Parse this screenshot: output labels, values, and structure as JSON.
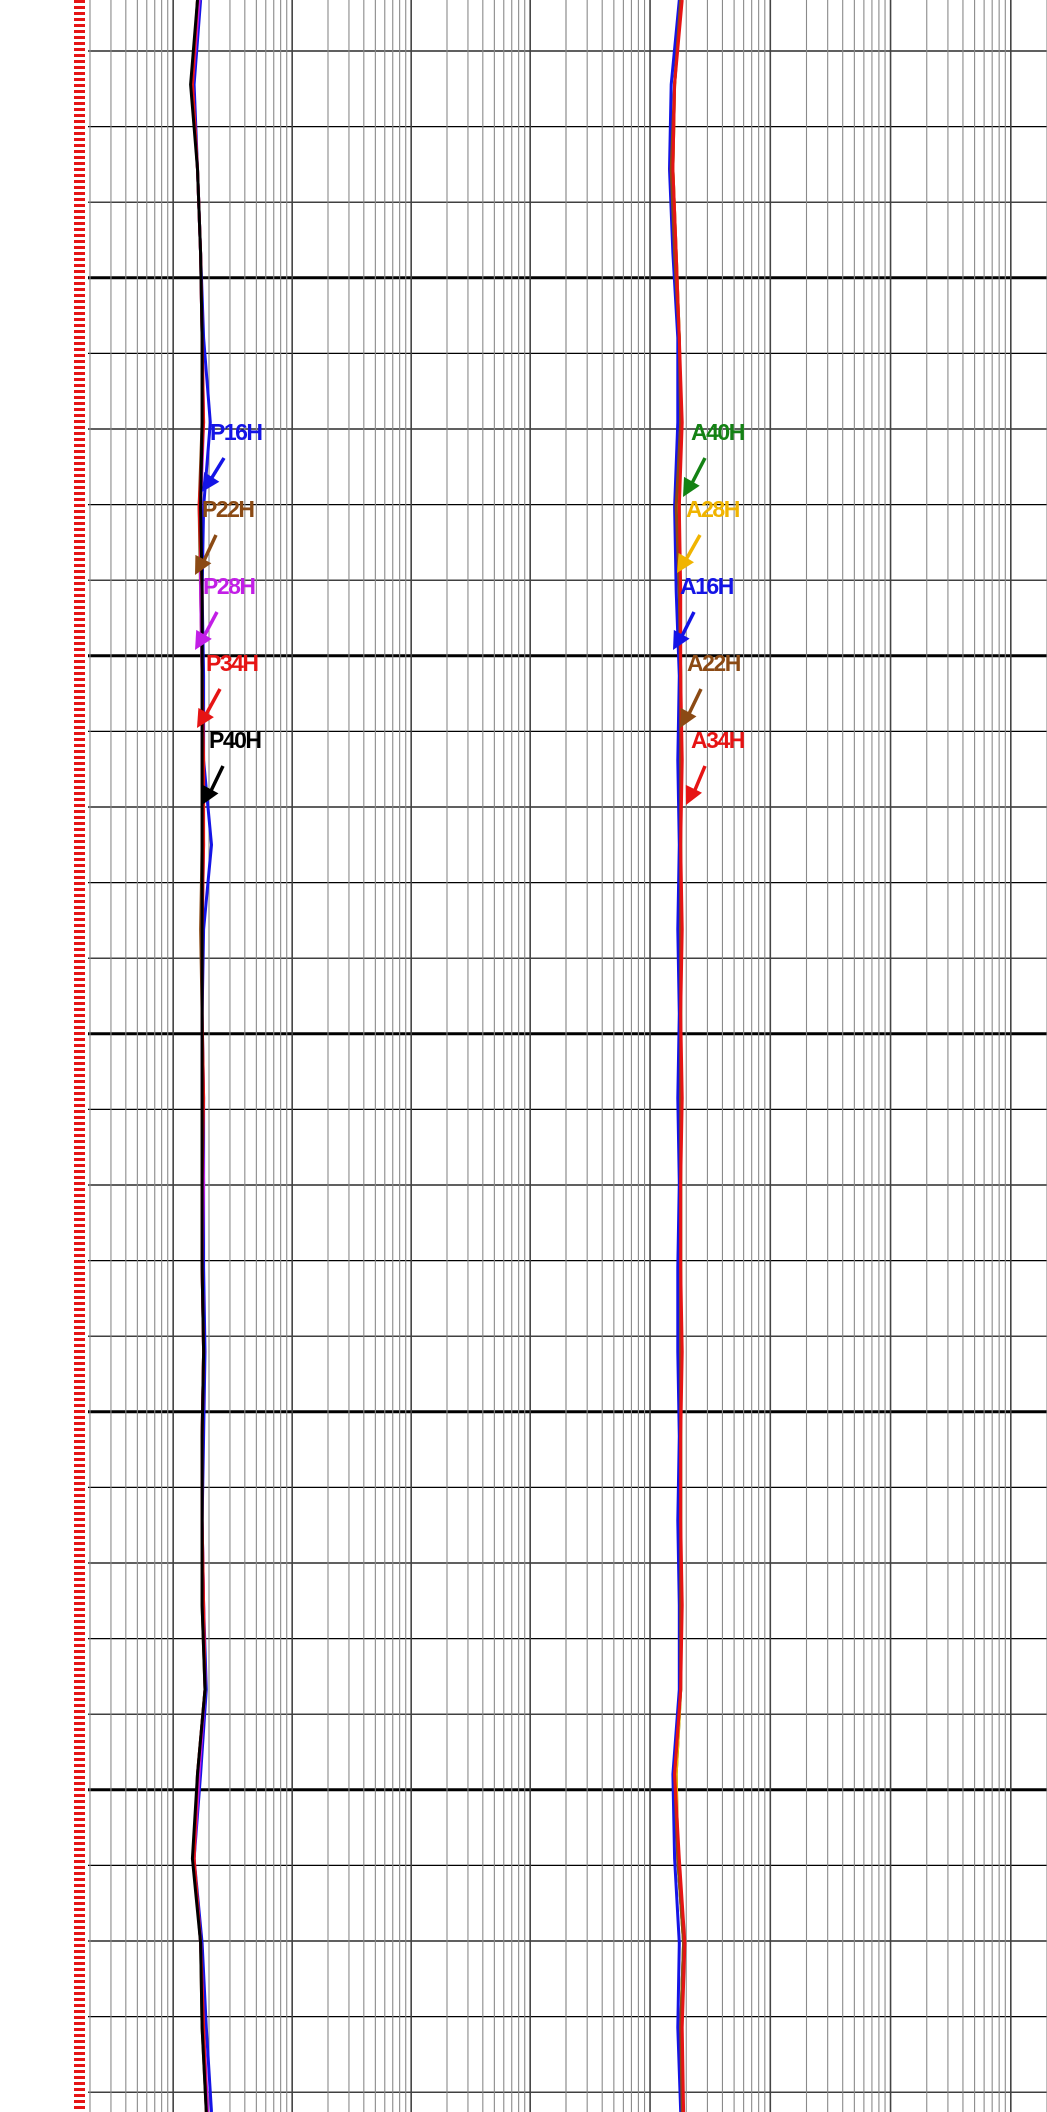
{
  "chart_data": {
    "type": "well-log",
    "ylim": [
      0,
      100
    ],
    "log_scale": true,
    "grid": true,
    "depth": [
      0,
      4,
      8,
      12,
      16,
      20,
      24,
      28,
      32,
      36,
      40,
      44,
      48,
      52,
      56,
      60,
      64,
      68,
      72,
      76,
      80,
      84,
      88,
      92,
      96,
      100
    ],
    "tracks": [
      {
        "xlim": [
          0.2,
          2000
        ],
        "series": [
          {
            "name": "P16H",
            "color": "#1414e6",
            "values": [
              1.7,
              1.5,
              1.6,
              1.7,
              1.8,
              2.05,
              1.8,
              1.75,
              1.8,
              1.8,
              2.1,
              1.8,
              1.75,
              1.8,
              1.8,
              1.8,
              1.85,
              1.8,
              1.75,
              1.8,
              1.9,
              1.7,
              1.5,
              1.75,
              1.9,
              2.1
            ]
          },
          {
            "name": "P22H",
            "color": "#8b4a14",
            "values": [
              1.6,
              1.45,
              1.6,
              1.7,
              1.75,
              1.75,
              1.65,
              1.7,
              1.75,
              1.75,
              1.75,
              1.7,
              1.75,
              1.75,
              1.75,
              1.75,
              1.8,
              1.75,
              1.75,
              1.75,
              1.85,
              1.6,
              1.5,
              1.7,
              1.75,
              1.9
            ]
          },
          {
            "name": "P28H",
            "color": "#c21ee6",
            "values": [
              1.65,
              1.45,
              1.6,
              1.7,
              1.75,
              1.8,
              1.7,
              1.7,
              1.75,
              1.75,
              1.8,
              1.75,
              1.75,
              1.75,
              1.8,
              1.75,
              1.8,
              1.75,
              1.75,
              1.8,
              1.85,
              1.65,
              1.5,
              1.7,
              1.8,
              1.95
            ]
          },
          {
            "name": "P34H",
            "color": "#e61414",
            "values": [
              1.6,
              1.45,
              1.6,
              1.7,
              1.75,
              1.8,
              1.65,
              1.75,
              1.75,
              1.8,
              1.8,
              1.75,
              1.75,
              1.8,
              1.75,
              1.75,
              1.8,
              1.75,
              1.75,
              1.8,
              1.85,
              1.6,
              1.5,
              1.7,
              1.8,
              1.9
            ]
          },
          {
            "name": "P40H",
            "color": "#000000",
            "values": [
              1.6,
              1.4,
              1.6,
              1.7,
              1.75,
              1.75,
              1.7,
              1.75,
              1.75,
              1.75,
              1.75,
              1.75,
              1.75,
              1.75,
              1.75,
              1.75,
              1.8,
              1.75,
              1.75,
              1.75,
              1.85,
              1.6,
              1.45,
              1.7,
              1.75,
              1.9
            ]
          }
        ]
      },
      {
        "xlim": [
          0.2,
          2000
        ],
        "series": [
          {
            "name": "A40H",
            "color": "#148214",
            "values": [
              1.8,
              1.6,
              1.55,
              1.65,
              1.75,
              1.8,
              1.75,
              1.75,
              1.8,
              1.8,
              1.8,
              1.8,
              1.8,
              1.8,
              1.8,
              1.8,
              1.8,
              1.8,
              1.8,
              1.8,
              1.8,
              1.65,
              1.7,
              1.9,
              1.8,
              1.85
            ]
          },
          {
            "name": "A28H",
            "color": "#f0b400",
            "values": [
              1.8,
              1.6,
              1.55,
              1.65,
              1.75,
              1.8,
              1.7,
              1.75,
              1.8,
              1.8,
              1.8,
              1.8,
              1.8,
              1.8,
              1.8,
              1.8,
              1.8,
              1.8,
              1.8,
              1.8,
              1.8,
              1.65,
              1.7,
              1.9,
              1.8,
              1.85
            ]
          },
          {
            "name": "A16H",
            "color": "#1414e6",
            "values": [
              1.75,
              1.5,
              1.45,
              1.55,
              1.7,
              1.7,
              1.6,
              1.65,
              1.75,
              1.7,
              1.75,
              1.7,
              1.75,
              1.7,
              1.75,
              1.7,
              1.7,
              1.75,
              1.7,
              1.75,
              1.75,
              1.55,
              1.6,
              1.75,
              1.7,
              1.8
            ]
          },
          {
            "name": "A22H",
            "color": "#8b4a14",
            "values": [
              1.8,
              1.6,
              1.5,
              1.6,
              1.75,
              1.8,
              1.65,
              1.75,
              1.8,
              1.8,
              1.8,
              1.8,
              1.8,
              1.8,
              1.8,
              1.8,
              1.8,
              1.8,
              1.8,
              1.8,
              1.8,
              1.6,
              1.7,
              1.9,
              1.8,
              1.85
            ]
          },
          {
            "name": "A34H",
            "color": "#e61414",
            "values": [
              1.85,
              1.6,
              1.55,
              1.65,
              1.75,
              1.85,
              1.75,
              1.8,
              1.8,
              1.85,
              1.8,
              1.85,
              1.8,
              1.85,
              1.8,
              1.8,
              1.85,
              1.8,
              1.8,
              1.85,
              1.8,
              1.6,
              1.75,
              1.95,
              1.85,
              1.9
            ]
          }
        ]
      }
    ]
  }
}
